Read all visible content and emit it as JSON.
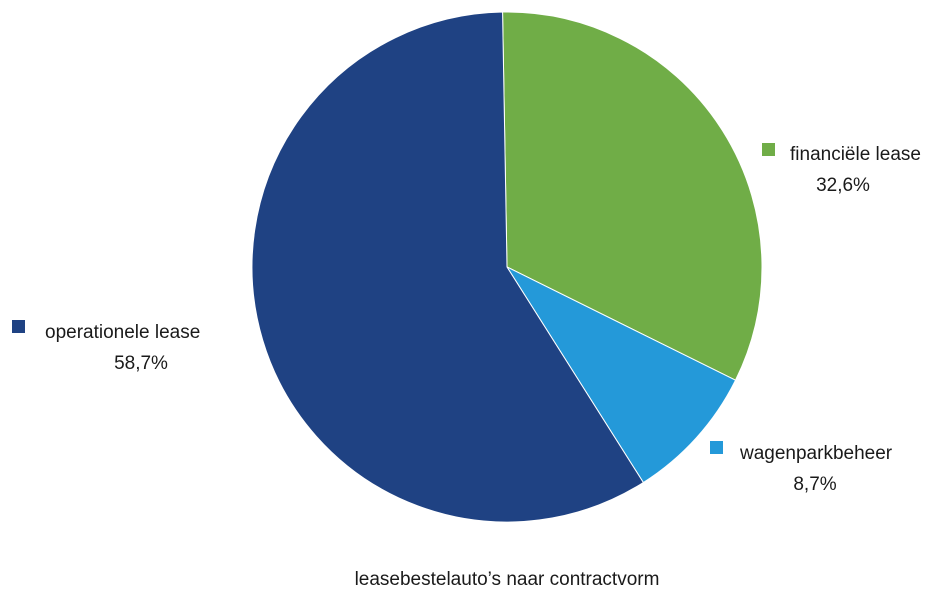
{
  "chart_data": {
    "type": "pie",
    "title": "leasebestelauto’s  naar contractvorm",
    "slices": [
      {
        "label": "financiële lease",
        "value": 32.6,
        "value_label": "32,6%",
        "color": "#70AD47"
      },
      {
        "label": "wagenparkbeheer",
        "value": 8.7,
        "value_label": "8,7%",
        "color": "#2499D9"
      },
      {
        "label": "operationele lease",
        "value": 58.7,
        "value_label": "58,7%",
        "color": "#1F4283"
      }
    ],
    "start_angle_deg": -1,
    "direction": "clockwise"
  }
}
